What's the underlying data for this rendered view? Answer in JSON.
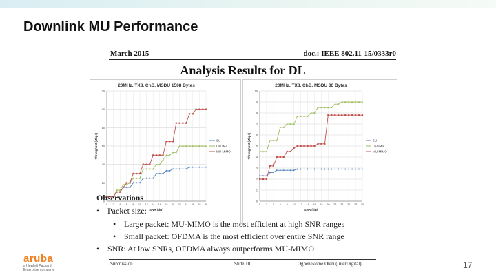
{
  "slide": {
    "title": "Downlink MU Performance",
    "page_number": "17",
    "logo_word": "aruba",
    "logo_sub": "a Hewlett Packard Enterprise company",
    "accent_color": "#f08020"
  },
  "document": {
    "date": "March 2015",
    "doc_id": "doc.: IEEE 802.11-15/0333r0",
    "heading": "Analysis Results for DL",
    "footer_left": "Submission",
    "footer_center": "Slide 10",
    "footer_right": "Oghenekome Oteri (InterDigital)"
  },
  "observations": {
    "title": "Observations",
    "bullets": [
      {
        "level": 1,
        "text": "Packet size:"
      },
      {
        "level": 2,
        "text": "Large packet: MU-MIMO is the most efficient at high SNR ranges"
      },
      {
        "level": 2,
        "text": "Small packet: OFDMA is the most efficient over entire SNR range"
      },
      {
        "level": 1,
        "text": "SNR: At low SNRs, OFDMA always outperforms MU-MIMO"
      }
    ]
  },
  "chart_data": [
    {
      "type": "line",
      "title": "20MHz, TX8, ChB, MSDU 1508 Bytes",
      "xlabel": "SNR (dB)",
      "ylabel": "Throughput (Mbps)",
      "x": [
        0,
        1,
        2,
        3,
        4,
        5,
        6,
        7,
        8,
        9,
        10,
        11,
        12,
        13,
        14,
        15,
        16,
        17,
        18,
        19,
        20,
        21,
        22,
        23,
        24,
        25,
        26,
        27,
        28,
        29,
        30
      ],
      "x_ticks": [
        0,
        2,
        4,
        6,
        8,
        10,
        12,
        14,
        16,
        18,
        20,
        22,
        24,
        26,
        28,
        30
      ],
      "ylim": [
        0,
        120
      ],
      "y_ticks": [
        0,
        20,
        40,
        60,
        80,
        100,
        120
      ],
      "grid": true,
      "legend": "right",
      "series": [
        {
          "name": "SU",
          "color": "#4f81bd",
          "values": [
            5,
            5,
            5,
            10,
            10,
            15,
            15,
            15,
            20,
            20,
            20,
            25,
            25,
            25,
            25,
            30,
            30,
            30,
            33,
            33,
            35,
            35,
            35,
            35,
            35,
            37,
            37,
            37,
            37,
            37,
            37
          ]
        },
        {
          "name": "OFDMA",
          "color": "#9bbb59",
          "values": [
            5,
            5,
            5,
            12,
            12,
            18,
            18,
            20,
            25,
            25,
            25,
            35,
            35,
            35,
            35,
            40,
            40,
            45,
            50,
            50,
            53,
            53,
            60,
            60,
            60,
            60,
            60,
            60,
            60,
            60,
            60
          ]
        },
        {
          "name": "MU-MIMO",
          "color": "#c0504d",
          "values": [
            5,
            5,
            5,
            10,
            10,
            15,
            20,
            20,
            30,
            30,
            30,
            40,
            40,
            40,
            50,
            50,
            50,
            50,
            65,
            65,
            65,
            85,
            85,
            85,
            85,
            95,
            95,
            100,
            100,
            100,
            100
          ]
        }
      ]
    },
    {
      "type": "line",
      "title": "20MHz, TX8, ChB, MSDU 36 Bytes",
      "xlabel": "SNR (dB)",
      "ylabel": "Throughput (Mbps)",
      "x": [
        0,
        1,
        2,
        3,
        4,
        5,
        6,
        7,
        8,
        9,
        10,
        11,
        12,
        13,
        14,
        15,
        16,
        17,
        18,
        19,
        20,
        21,
        22,
        23,
        24,
        25,
        26,
        27,
        28,
        29,
        30
      ],
      "x_ticks": [
        0,
        2,
        4,
        6,
        8,
        10,
        12,
        14,
        16,
        18,
        20,
        22,
        24,
        26,
        28,
        30
      ],
      "ylim": [
        0,
        10
      ],
      "y_ticks": [
        0,
        1,
        2,
        3,
        4,
        5,
        6,
        7,
        8,
        9,
        10
      ],
      "grid": true,
      "legend": "right",
      "series": [
        {
          "name": "SU",
          "color": "#4f81bd",
          "values": [
            2.3,
            2.3,
            2.3,
            2.6,
            2.6,
            2.8,
            2.8,
            2.8,
            2.8,
            2.8,
            2.8,
            2.9,
            2.9,
            2.9,
            2.9,
            2.9,
            2.9,
            2.9,
            2.9,
            2.9,
            2.9,
            2.9,
            2.9,
            2.9,
            2.9,
            2.9,
            2.9,
            2.9,
            2.9,
            2.9,
            2.9
          ]
        },
        {
          "name": "OFDMA",
          "color": "#9bbb59",
          "values": [
            4.5,
            4.5,
            4.5,
            5.5,
            5.5,
            5.5,
            6.7,
            6.7,
            7,
            7,
            7,
            7.7,
            7.7,
            7.7,
            7.7,
            8,
            8,
            8.5,
            8.5,
            8.5,
            8.5,
            8.5,
            8.8,
            8.8,
            9,
            9,
            9,
            9,
            9,
            9,
            9
          ]
        },
        {
          "name": "MU-MIMO",
          "color": "#c0504d",
          "values": [
            2,
            2,
            2,
            3.2,
            3.2,
            4,
            4,
            4,
            4.5,
            4.5,
            4.8,
            5,
            5,
            5,
            5,
            5,
            5,
            5.2,
            5.2,
            5.2,
            7.8,
            7.8,
            7.8,
            7.8,
            7.8,
            7.8,
            7.8,
            7.8,
            7.8,
            7.8,
            7.8
          ]
        }
      ]
    }
  ]
}
